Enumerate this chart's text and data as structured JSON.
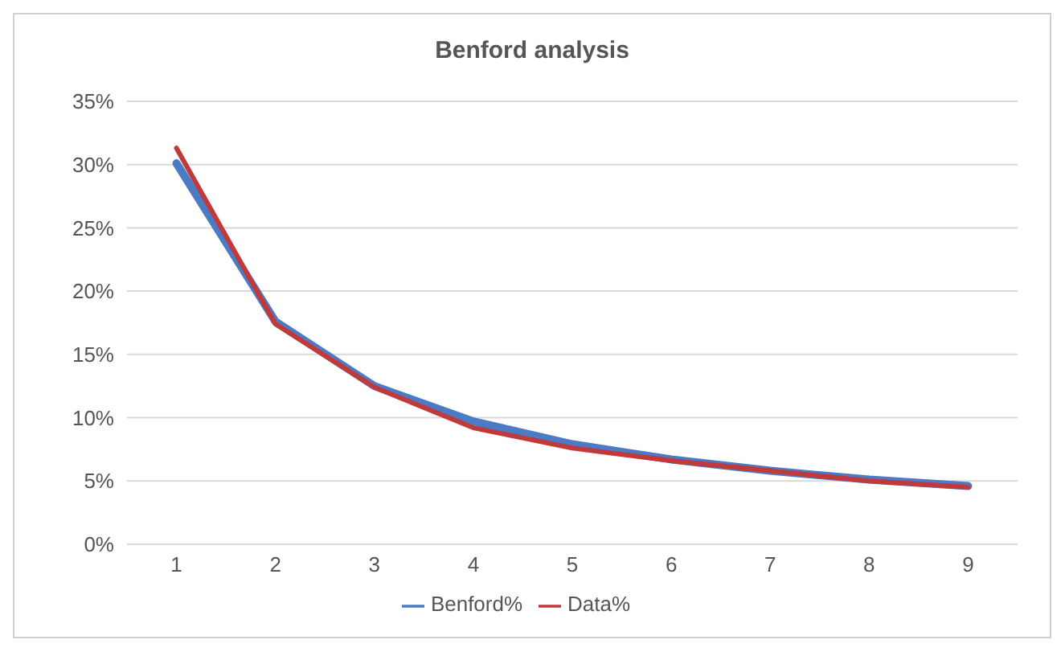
{
  "chart_data": {
    "type": "line",
    "title": "Benford analysis",
    "categories": [
      "1",
      "2",
      "3",
      "4",
      "5",
      "6",
      "7",
      "8",
      "9"
    ],
    "series": [
      {
        "name": "Benford%",
        "color": "#4a7bc4",
        "values": [
          30.1,
          17.6,
          12.5,
          9.7,
          7.9,
          6.7,
          5.8,
          5.1,
          4.6
        ]
      },
      {
        "name": "Data%",
        "color": "#c0393b",
        "values": [
          31.3,
          17.4,
          12.4,
          9.2,
          7.6,
          6.6,
          5.8,
          5.0,
          4.5
        ]
      }
    ],
    "ylim": [
      0,
      35
    ],
    "yticks": [
      {
        "value": 0,
        "label": "0%"
      },
      {
        "value": 5,
        "label": "5%"
      },
      {
        "value": 10,
        "label": "10%"
      },
      {
        "value": 15,
        "label": "15%"
      },
      {
        "value": 20,
        "label": "20%"
      },
      {
        "value": 25,
        "label": "25%"
      },
      {
        "value": 30,
        "label": "30%"
      },
      {
        "value": 35,
        "label": "35%"
      }
    ],
    "grid": "y",
    "legend": "bottom",
    "marker": "none",
    "line_style": "solid"
  }
}
